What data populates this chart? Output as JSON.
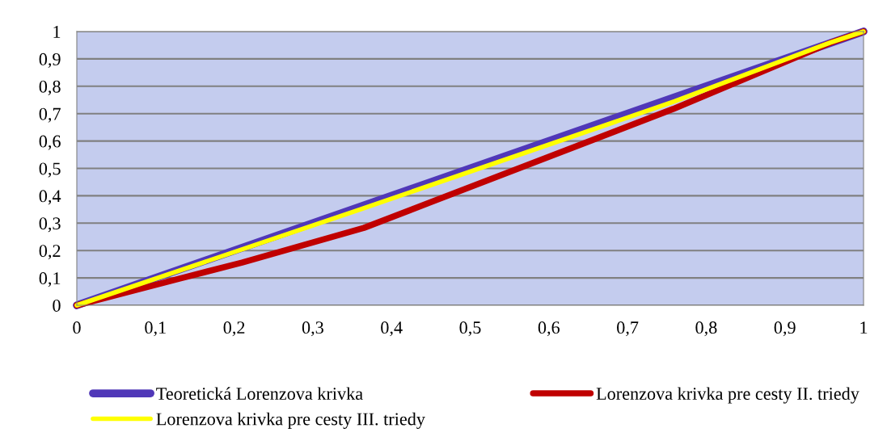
{
  "chart_data": {
    "type": "line",
    "xlim": [
      0,
      1
    ],
    "ylim": [
      0,
      1
    ],
    "xticks": [
      0,
      {
        "value": 0.1,
        "label": "0,1"
      },
      {
        "value": 0.2,
        "label": "0,2"
      },
      {
        "value": 0.3,
        "label": "0,3"
      },
      {
        "value": 0.4,
        "label": "0,4"
      },
      {
        "value": 0.5,
        "label": "0,5"
      },
      {
        "value": 0.6,
        "label": "0,6"
      },
      {
        "value": 0.7,
        "label": "0,7"
      },
      {
        "value": 0.8,
        "label": "0,8"
      },
      {
        "value": 0.9,
        "label": "0,9"
      },
      1
    ],
    "yticks": [
      0,
      {
        "value": 0.1,
        "label": "0,1"
      },
      {
        "value": 0.2,
        "label": "0,2"
      },
      {
        "value": 0.3,
        "label": "0,3"
      },
      {
        "value": 0.4,
        "label": "0,4"
      },
      {
        "value": 0.5,
        "label": "0,5"
      },
      {
        "value": 0.6,
        "label": "0,6"
      },
      {
        "value": 0.7,
        "label": "0,7"
      },
      {
        "value": 0.8,
        "label": "0,8"
      },
      {
        "value": 0.9,
        "label": "0,9"
      },
      1
    ],
    "grid": "y",
    "legend": "bottom",
    "marker": "none",
    "line_style": "solid",
    "series": [
      {
        "name": "Teoretická Lorenzova krivka",
        "color": "#5038b8",
        "x": [
          0,
          1
        ],
        "values": [
          0,
          1
        ]
      },
      {
        "name": "Lorenzova krivka pre cesty II. triedy",
        "color": "#c00000",
        "x": [
          0,
          0.13,
          0.21,
          0.365,
          0.758,
          0.958,
          1
        ],
        "values": [
          0,
          0.097,
          0.156,
          0.283,
          0.717,
          0.959,
          1
        ]
      },
      {
        "name": "Lorenzova krivka pre cesty III. triedy",
        "color": "#ffff00",
        "x": [
          0,
          0.36,
          0.76,
          0.958,
          1
        ],
        "values": [
          0,
          0.35,
          0.745,
          0.96,
          1
        ]
      }
    ]
  }
}
